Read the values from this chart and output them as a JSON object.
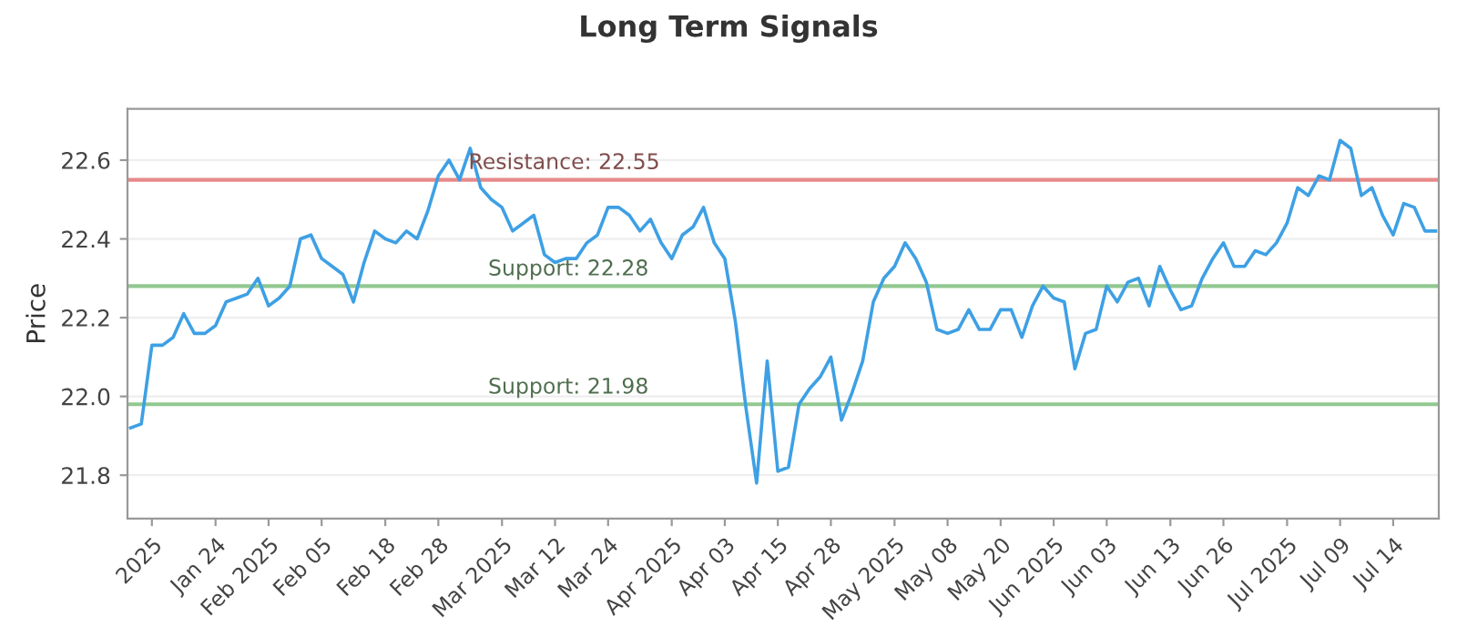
{
  "chart_data": {
    "type": "line",
    "title": "Long Term Signals",
    "ylabel": "Price",
    "categories": [
      null,
      null,
      "2025",
      null,
      null,
      null,
      null,
      null,
      "Jan 24",
      null,
      null,
      null,
      null,
      "Feb 2025",
      null,
      null,
      null,
      null,
      "Feb 05",
      null,
      null,
      null,
      null,
      null,
      "Feb 18",
      null,
      null,
      null,
      null,
      "Feb 28",
      null,
      null,
      null,
      null,
      null,
      "Mar 2025",
      null,
      null,
      null,
      null,
      "Mar 12",
      null,
      null,
      null,
      null,
      "Mar 24",
      null,
      null,
      null,
      null,
      null,
      "Apr 2025",
      null,
      null,
      null,
      null,
      "Apr 03",
      null,
      null,
      null,
      null,
      "Apr 15",
      null,
      null,
      null,
      null,
      "Apr 28",
      null,
      null,
      null,
      null,
      null,
      "May 2025",
      null,
      null,
      null,
      null,
      "May 08",
      null,
      null,
      null,
      null,
      "May 20",
      null,
      null,
      null,
      null,
      "Jun 2025",
      null,
      null,
      null,
      null,
      "Jun 03",
      null,
      null,
      null,
      null,
      null,
      "Jun 13",
      null,
      null,
      null,
      null,
      "Jun 26",
      null,
      null,
      null,
      null,
      null,
      "Jul 2025",
      null,
      null,
      null,
      null,
      "Jul 09",
      null,
      null,
      null,
      null,
      "Jul 14",
      null,
      null,
      null,
      null
    ],
    "series": [
      {
        "color": "#3ea0e4",
        "values": [
          21.92,
          21.93,
          22.13,
          22.13,
          22.15,
          22.21,
          22.16,
          22.16,
          22.18,
          22.24,
          22.25,
          22.26,
          22.3,
          22.23,
          22.25,
          22.28,
          22.4,
          22.41,
          22.35,
          22.33,
          22.31,
          22.24,
          22.34,
          22.42,
          22.4,
          22.39,
          22.42,
          22.4,
          22.47,
          22.56,
          22.6,
          22.55,
          22.63,
          22.53,
          22.5,
          22.48,
          22.42,
          22.44,
          22.46,
          22.36,
          22.34,
          22.35,
          22.35,
          22.39,
          22.41,
          22.48,
          22.48,
          22.46,
          22.42,
          22.45,
          22.39,
          22.35,
          22.41,
          22.43,
          22.48,
          22.39,
          22.35,
          22.19,
          21.97,
          21.78,
          22.09,
          21.81,
          21.82,
          21.98,
          22.02,
          22.05,
          22.1,
          21.94,
          22.01,
          22.09,
          22.24,
          22.3,
          22.33,
          22.39,
          22.35,
          22.29,
          22.17,
          22.16,
          22.17,
          22.22,
          22.17,
          22.17,
          22.22,
          22.22,
          22.15,
          22.23,
          22.28,
          22.25,
          22.24,
          22.07,
          22.16,
          22.17,
          22.28,
          22.24,
          22.29,
          22.3,
          22.23,
          22.33,
          22.27,
          22.22,
          22.23,
          22.3,
          22.35,
          22.39,
          22.33,
          22.33,
          22.37,
          22.36,
          22.39,
          22.44,
          22.53,
          22.51,
          22.56,
          22.55,
          22.65,
          22.63,
          22.51,
          22.53,
          22.46,
          22.41,
          22.49,
          22.48,
          22.42,
          22.42
        ]
      }
    ],
    "ylim": [
      21.69,
      22.73
    ],
    "yticks": [
      {
        "value": 21.8,
        "label": "21.8"
      },
      {
        "value": 22.0,
        "label": "22.0"
      },
      {
        "value": 22.2,
        "label": "22.2"
      },
      {
        "value": 22.4,
        "label": "22.4"
      },
      {
        "value": 22.6,
        "label": "22.6"
      }
    ],
    "grid": "y",
    "ref_lines": [
      {
        "axis": "y",
        "value": 22.55,
        "label": "Resistance: 22.55",
        "color": "#e88a8a"
      },
      {
        "axis": "y",
        "value": 22.28,
        "label": "Support: 22.28",
        "color": "#90c890"
      },
      {
        "axis": "y",
        "value": 21.98,
        "label": "Support: 21.98",
        "color": "#90c890"
      }
    ]
  }
}
